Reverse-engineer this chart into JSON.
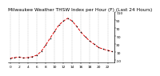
{
  "title": "Milwaukee Weather THSW Index per Hour (F) (Last 24 Hours)",
  "hours": [
    0,
    1,
    2,
    3,
    4,
    5,
    6,
    7,
    8,
    9,
    10,
    11,
    12,
    13,
    14,
    15,
    16,
    17,
    18,
    19,
    20,
    21,
    22,
    23
  ],
  "values": [
    -5,
    -3,
    -2,
    -4,
    -3,
    -1,
    3,
    12,
    28,
    45,
    62,
    78,
    88,
    95,
    88,
    75,
    60,
    48,
    38,
    30,
    22,
    18,
    15,
    12
  ],
  "line_color": "#dd0000",
  "marker_color": "#000000",
  "bg_color": "#ffffff",
  "plot_bg_color": "#ffffff",
  "grid_color": "#999999",
  "ylim": [
    -15,
    110
  ],
  "yticks": [
    -10,
    10,
    30,
    50,
    70,
    90,
    110
  ],
  "ytick_labels": [
    "-10",
    "10",
    "30",
    "50",
    "70",
    "90",
    "110"
  ],
  "xtick_step": 2,
  "title_fontsize": 4.2,
  "tick_fontsize": 3.2,
  "line_width": 0.7,
  "marker_size": 1.5
}
